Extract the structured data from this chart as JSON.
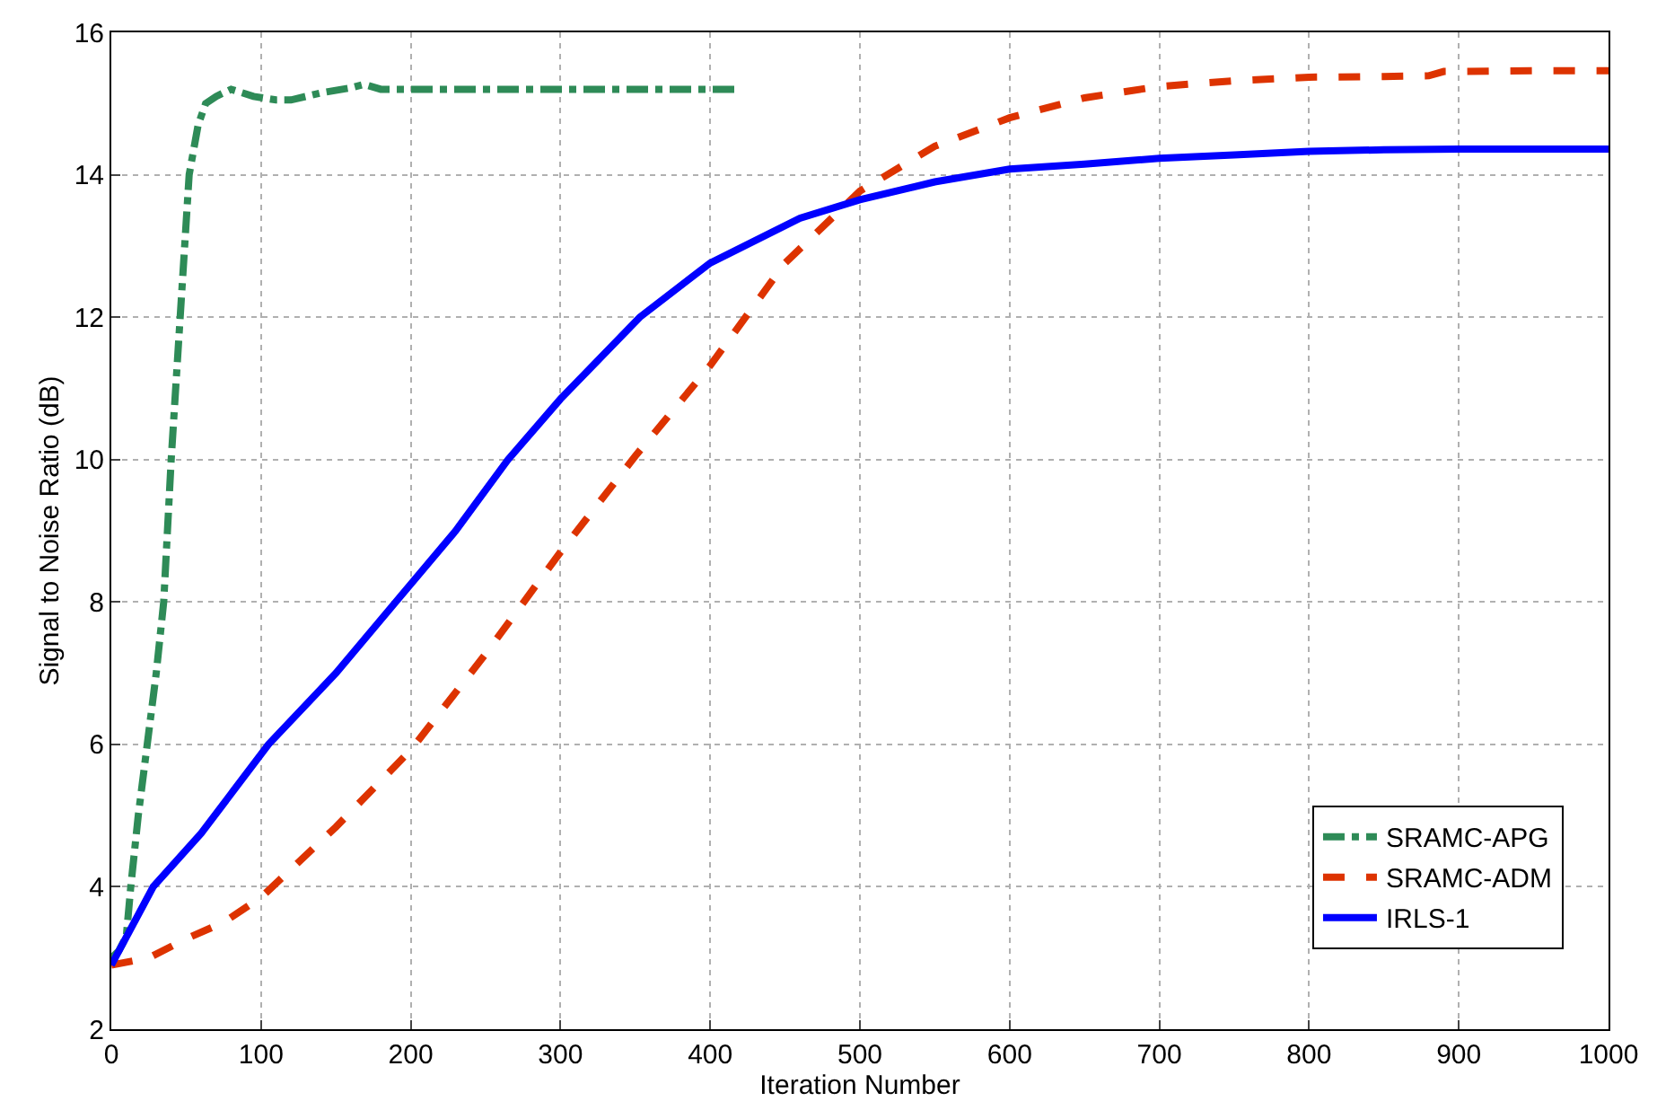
{
  "chart_data": {
    "type": "line",
    "xlabel": "Iteration Number",
    "ylabel": "Signal to Noise Ratio (dB)",
    "xlim": [
      0,
      1000
    ],
    "xticks": [
      0,
      100,
      200,
      300,
      400,
      500,
      600,
      700,
      800,
      900,
      1000
    ],
    "ylim": [
      2,
      16
    ],
    "yticks": [
      2,
      4,
      6,
      8,
      10,
      12,
      14,
      16
    ],
    "grid": true,
    "legend": "bottom right",
    "series": [
      {
        "name": "SRAMC-APG",
        "color": "#2e8b57",
        "line_style": "dashdot",
        "x": [
          0,
          5,
          10,
          13,
          18,
          24,
          30,
          35,
          40,
          46,
          52,
          58,
          63,
          70,
          80,
          95,
          110,
          120,
          140,
          160,
          169,
          180,
          200,
          250,
          300,
          350,
          418
        ],
        "values": [
          3.0,
          3.1,
          3.3,
          4.0,
          5.0,
          6.0,
          7.0,
          8.0,
          10.0,
          12.0,
          14.0,
          14.7,
          15.0,
          15.1,
          15.2,
          15.1,
          15.05,
          15.05,
          15.15,
          15.22,
          15.27,
          15.2,
          15.2,
          15.2,
          15.2,
          15.2,
          15.2
        ]
      },
      {
        "name": "SRAMC-ADM",
        "color": "#dd3300",
        "line_style": "dashed",
        "x": [
          0,
          25,
          50,
          75,
          100,
          150,
          200,
          250,
          300,
          350,
          400,
          450,
          500,
          550,
          600,
          650,
          700,
          750,
          800,
          850,
          880,
          890,
          950,
          1000
        ],
        "values": [
          2.9,
          3.0,
          3.27,
          3.5,
          3.85,
          4.84,
          5.92,
          7.27,
          8.7,
          10.05,
          11.32,
          12.76,
          13.77,
          14.4,
          14.8,
          15.08,
          15.24,
          15.32,
          15.37,
          15.38,
          15.39,
          15.45,
          15.46,
          15.46
        ]
      },
      {
        "name": "IRLS-1",
        "color": "#0000ff",
        "line_style": "solid",
        "x": [
          0,
          28,
          60,
          105,
          150,
          190,
          230,
          265,
          300,
          353,
          400,
          460,
          500,
          550,
          600,
          650,
          700,
          750,
          800,
          850,
          900,
          1000
        ],
        "values": [
          2.9,
          4.0,
          4.75,
          6.0,
          7.0,
          8.0,
          9.0,
          10.0,
          10.85,
          12.0,
          12.76,
          13.39,
          13.65,
          13.9,
          14.08,
          14.15,
          14.23,
          14.28,
          14.33,
          14.35,
          14.36,
          14.36
        ]
      }
    ]
  }
}
